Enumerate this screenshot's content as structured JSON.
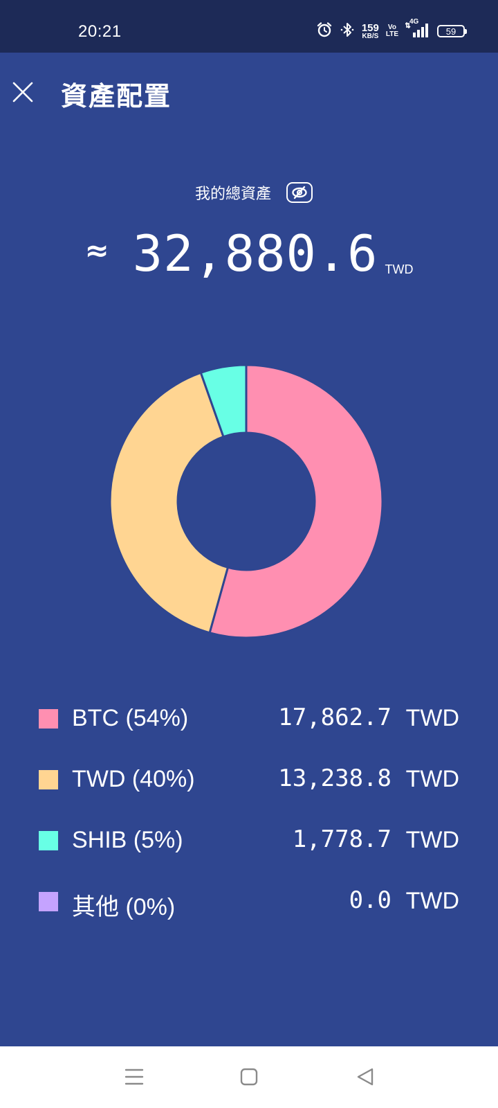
{
  "status_bar": {
    "time": "20:21",
    "net_speed_value": "159",
    "net_speed_unit": "KB/S",
    "volte_top": "Vo",
    "volte_bottom": "LTE",
    "network_type": "4G",
    "battery": "59",
    "icons": [
      "alarm-icon",
      "bluetooth-icon",
      "signal-icon",
      "battery-icon"
    ]
  },
  "header": {
    "title": "資產配置",
    "close_icon": "close-icon"
  },
  "summary": {
    "label": "我的總資產",
    "approx_symbol": "≈",
    "total": "32,880.6",
    "unit": "TWD",
    "visibility_icon": "eye-off-icon"
  },
  "colors": {
    "background": "#2f4690",
    "btc": "#ff8fb1",
    "twd": "#ffd592",
    "shib": "#68ffe5",
    "other": "#c5a3ff"
  },
  "chart_data": {
    "type": "pie",
    "donut": true,
    "categories": [
      "BTC",
      "TWD",
      "SHIB",
      "其他"
    ],
    "values": [
      17862.7,
      13238.8,
      1778.7,
      0.0
    ],
    "colors": [
      "#ff8fb1",
      "#ffd592",
      "#68ffe5",
      "#c5a3ff"
    ],
    "legend_position": "bottom"
  },
  "legend": [
    {
      "label": "BTC (54%)",
      "value": "17,862.7",
      "unit": "TWD",
      "color": "#ff8fb1"
    },
    {
      "label": "TWD (40%)",
      "value": "13,238.8",
      "unit": "TWD",
      "color": "#ffd592"
    },
    {
      "label": "SHIB (5%)",
      "value": "1,778.7",
      "unit": "TWD",
      "color": "#68ffe5"
    },
    {
      "label": "其他 (0%)",
      "value": "0.0",
      "unit": "TWD",
      "color": "#c5a3ff"
    }
  ],
  "nav": {
    "icons": [
      "menu-icon",
      "home-icon",
      "back-icon"
    ]
  }
}
